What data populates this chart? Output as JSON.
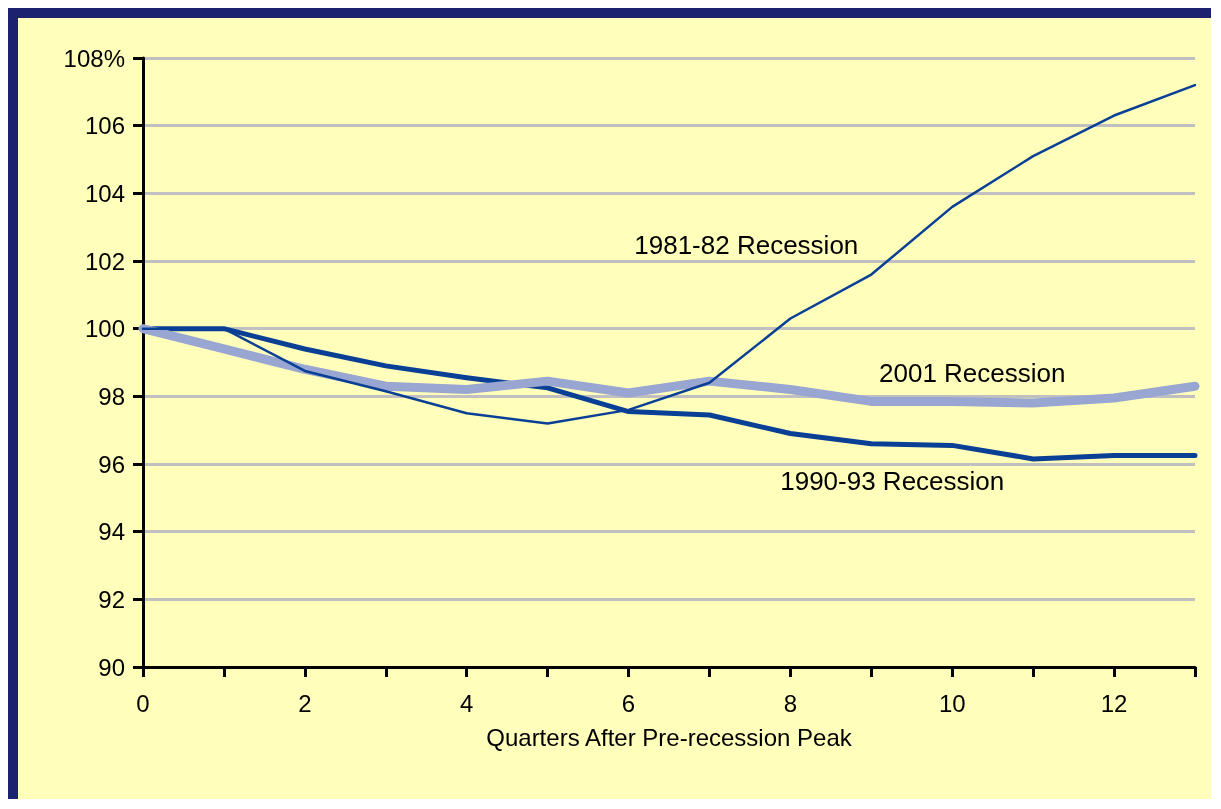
{
  "chart_data": {
    "type": "line",
    "xlabel": "Quarters After Pre-recession Peak",
    "x": [
      0,
      1,
      2,
      3,
      4,
      5,
      6,
      7,
      8,
      9,
      10,
      11,
      12,
      13
    ],
    "series": [
      {
        "name": "1981-82 Recession",
        "color": "#0a3f96",
        "values": [
          100,
          100,
          98.75,
          98.15,
          97.5,
          97.2,
          97.6,
          98.4,
          100.3,
          101.6,
          103.6,
          105.1,
          106.3,
          107.2
        ]
      },
      {
        "name": "2001 Recession",
        "color": "#99a6d2",
        "values": [
          100,
          99.4,
          98.8,
          98.3,
          98.2,
          98.45,
          98.1,
          98.45,
          98.2,
          97.85,
          97.85,
          97.8,
          97.95,
          98.3
        ]
      },
      {
        "name": "1990-93 Recession",
        "color": "#0a3f96",
        "values": [
          100,
          100,
          99.4,
          98.9,
          98.55,
          98.25,
          97.55,
          97.45,
          96.9,
          96.6,
          96.55,
          96.15,
          96.25,
          96.25
        ]
      }
    ],
    "xlim": [
      0,
      13
    ],
    "xticks": [
      0,
      {
        "value": 1,
        "label": null
      },
      2,
      {
        "value": 3,
        "label": null
      },
      4,
      {
        "value": 5,
        "label": null
      },
      6,
      {
        "value": 7,
        "label": null
      },
      8,
      {
        "value": 9,
        "label": null
      },
      10,
      {
        "value": 11,
        "label": null
      },
      12,
      {
        "value": 13,
        "label": null
      }
    ],
    "ylim": [
      90,
      108
    ],
    "yticks": [
      90,
      92,
      94,
      96,
      98,
      100,
      102,
      104,
      106,
      {
        "value": 108,
        "label": "108%"
      }
    ],
    "grid": "y",
    "marker": "none",
    "line_style": "solid"
  }
}
